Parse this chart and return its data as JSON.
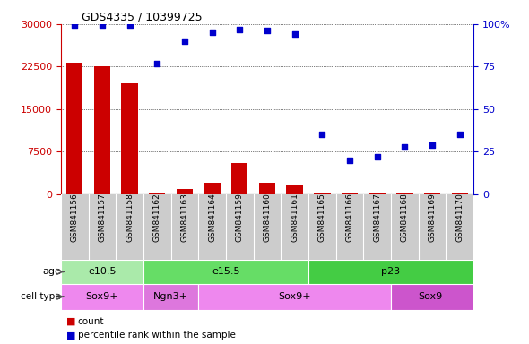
{
  "title": "GDS4335 / 10399725",
  "samples": [
    "GSM841156",
    "GSM841157",
    "GSM841158",
    "GSM841162",
    "GSM841163",
    "GSM841164",
    "GSM841159",
    "GSM841160",
    "GSM841161",
    "GSM841165",
    "GSM841166",
    "GSM841167",
    "GSM841168",
    "GSM841169",
    "GSM841170"
  ],
  "counts": [
    23200,
    22500,
    19500,
    350,
    900,
    2100,
    5500,
    2000,
    1700,
    150,
    200,
    150,
    300,
    200,
    100
  ],
  "percentile": [
    99.5,
    99.5,
    99.5,
    77,
    90,
    95,
    97,
    96,
    94,
    35,
    20,
    22,
    28,
    29,
    35
  ],
  "ylim_left": [
    0,
    30000
  ],
  "ylim_right": [
    0,
    100
  ],
  "yticks_left": [
    0,
    7500,
    15000,
    22500,
    30000
  ],
  "yticks_right": [
    0,
    25,
    50,
    75,
    100
  ],
  "bar_color": "#cc0000",
  "dot_color": "#0000cc",
  "age_groups": [
    {
      "label": "e10.5",
      "start": 0,
      "end": 3,
      "color": "#aaeaaa"
    },
    {
      "label": "e15.5",
      "start": 3,
      "end": 9,
      "color": "#66dd66"
    },
    {
      "label": "p23",
      "start": 9,
      "end": 15,
      "color": "#44cc44"
    }
  ],
  "cell_type_groups": [
    {
      "label": "Sox9+",
      "start": 0,
      "end": 3,
      "color": "#ee88ee"
    },
    {
      "label": "Ngn3+",
      "start": 3,
      "end": 5,
      "color": "#dd77dd"
    },
    {
      "label": "Sox9+",
      "start": 5,
      "end": 12,
      "color": "#ee88ee"
    },
    {
      "label": "Sox9-",
      "start": 12,
      "end": 15,
      "color": "#cc55cc"
    }
  ],
  "age_label": "age",
  "cell_type_label": "cell type",
  "legend_count_label": "count",
  "legend_pct_label": "percentile rank within the sample",
  "bg_color": "#dddddd",
  "tick_bg_color": "#cccccc",
  "plot_bg_color": "#ffffff",
  "axis_color_left": "#cc0000",
  "axis_color_right": "#0000cc",
  "fig_bg": "#ffffff"
}
